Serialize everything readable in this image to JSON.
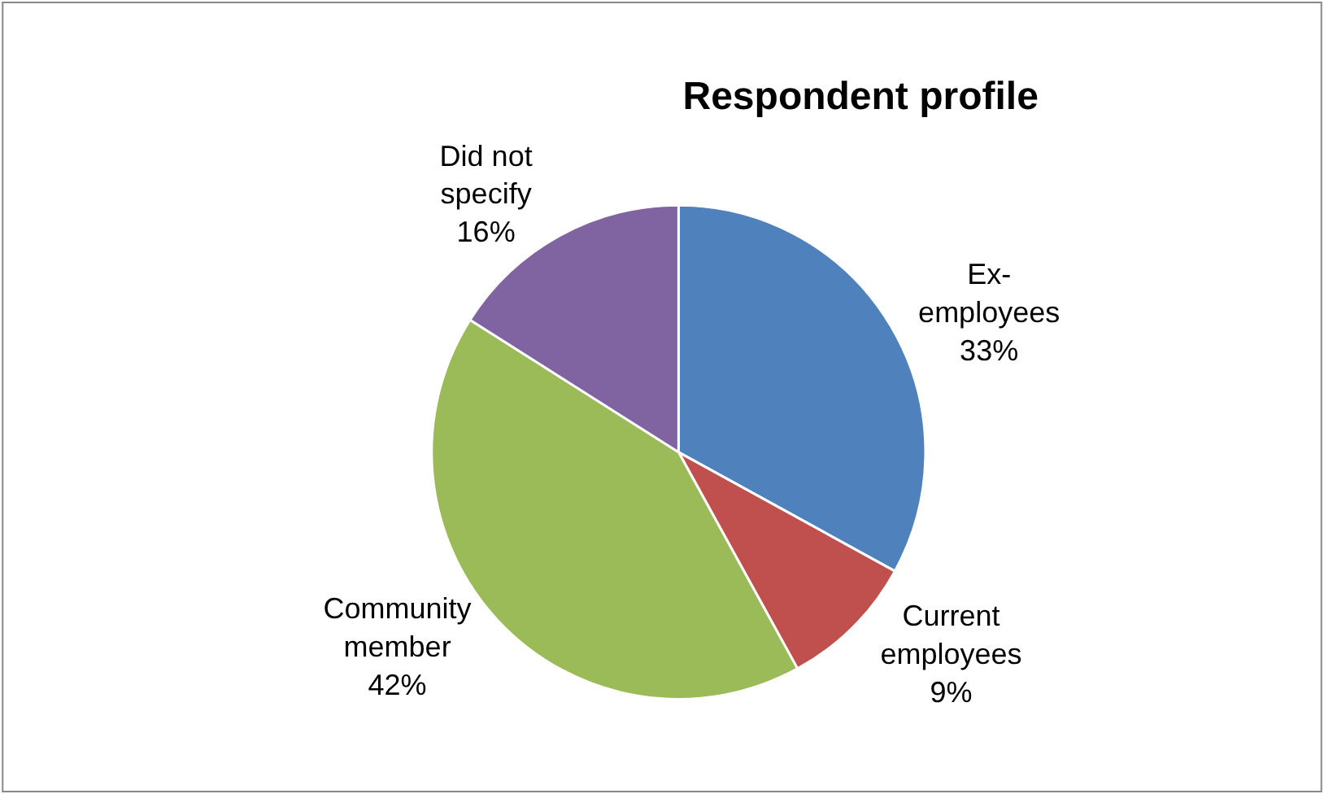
{
  "chart_data": {
    "type": "pie",
    "title": "Respondent profile",
    "categories": [
      "Ex-employees",
      "Current employees",
      "Community member",
      "Did not specify"
    ],
    "values": [
      33,
      9,
      42,
      16
    ],
    "colors": [
      "#4f81bd",
      "#c0504d",
      "#9bbb59",
      "#8064a2"
    ],
    "value_labels": [
      "33%",
      "9%",
      "42%",
      "16%"
    ],
    "legend": false
  }
}
